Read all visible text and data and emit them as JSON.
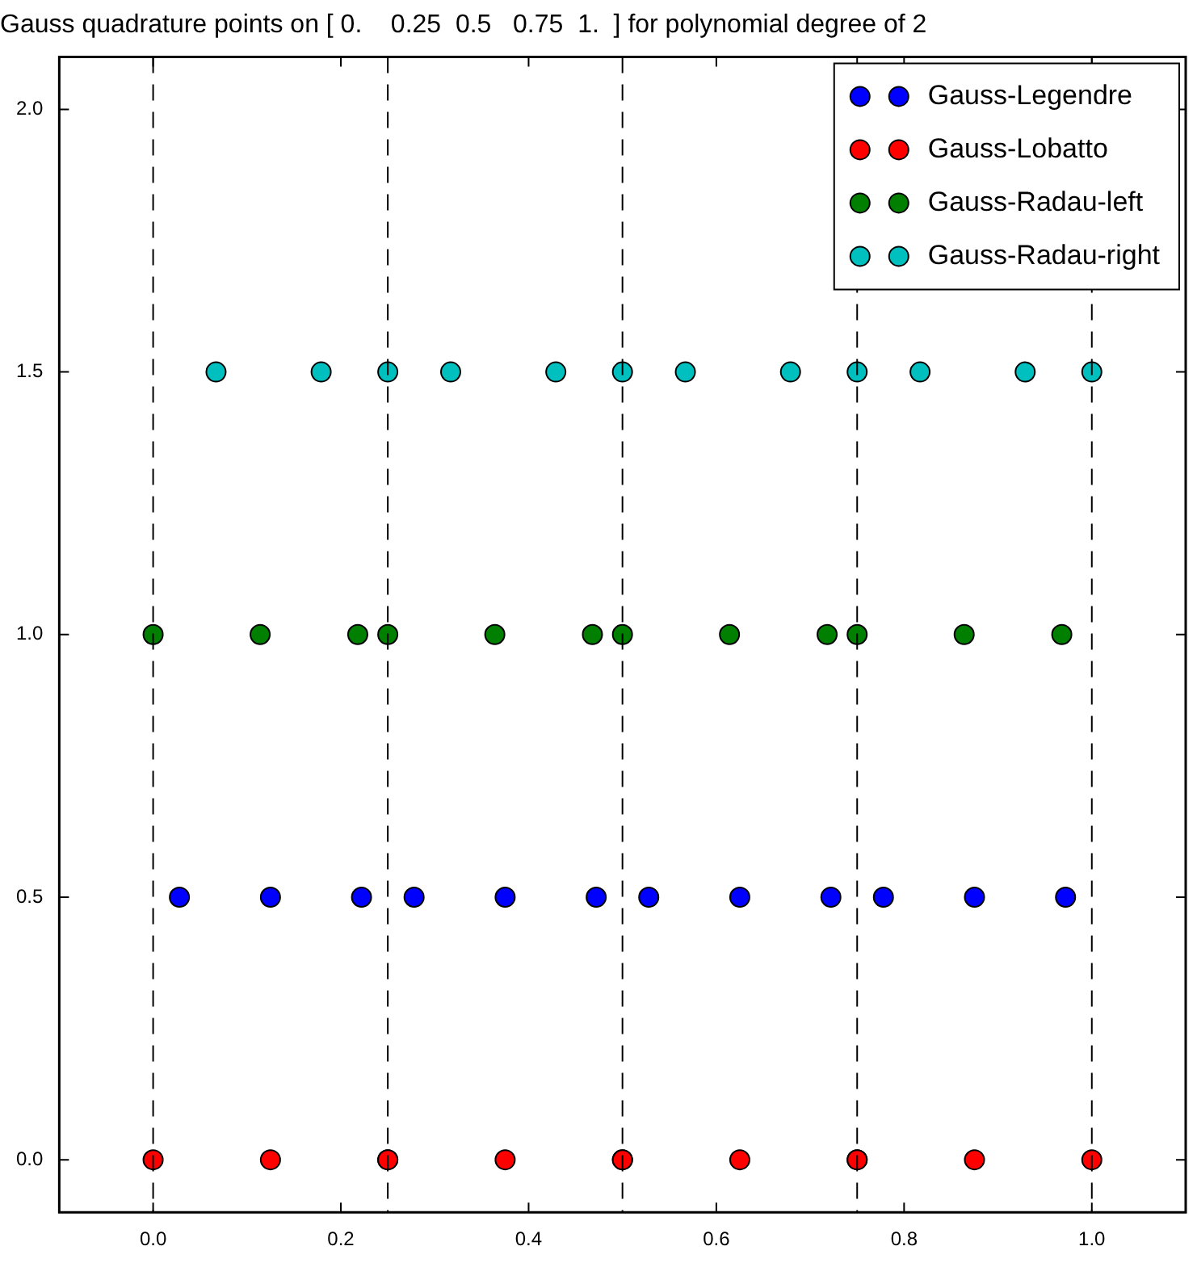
{
  "chart_data": {
    "type": "scatter",
    "title": "Gauss quadrature points on [ 0.    0.25  0.5   0.75  1.  ] for polynomial degree of 2",
    "series": [
      {
        "name": "Gauss-Legendre",
        "color": "#0000ff",
        "x": [
          0.028,
          0.125,
          0.222,
          0.278,
          0.375,
          0.472,
          0.528,
          0.625,
          0.722,
          0.778,
          0.875,
          0.972
        ],
        "values": [
          0.5,
          0.5,
          0.5,
          0.5,
          0.5,
          0.5,
          0.5,
          0.5,
          0.5,
          0.5,
          0.5,
          0.5
        ]
      },
      {
        "name": "Gauss-Lobatto",
        "color": "#ff0000",
        "x": [
          0,
          0.125,
          0.25,
          0.25,
          0.375,
          0.5,
          0.5,
          0.625,
          0.75,
          0.75,
          0.875,
          1
        ],
        "values": [
          0,
          0,
          0,
          0,
          0,
          0,
          0,
          0,
          0,
          0,
          0,
          0
        ]
      },
      {
        "name": "Gauss-Radau-left",
        "color": "#007f00",
        "x": [
          0,
          0.114,
          0.218,
          0.25,
          0.364,
          0.468,
          0.5,
          0.614,
          0.718,
          0.75,
          0.864,
          0.968
        ],
        "values": [
          1,
          1,
          1,
          1,
          1,
          1,
          1,
          1,
          1,
          1,
          1,
          1
        ]
      },
      {
        "name": "Gauss-Radau-right",
        "color": "#00bfbf",
        "x": [
          0.067,
          0.179,
          0.25,
          0.317,
          0.429,
          0.5,
          0.567,
          0.679,
          0.75,
          0.817,
          0.929,
          1
        ],
        "values": [
          1.5,
          1.5,
          1.5,
          1.5,
          1.5,
          1.5,
          1.5,
          1.5,
          1.5,
          1.5,
          1.5,
          1.5
        ]
      }
    ],
    "xlim": [
      -0.1,
      1.1
    ],
    "xticks": [
      {
        "value": 0,
        "label": "0.0"
      },
      {
        "value": 0.2,
        "label": "0.2"
      },
      {
        "value": 0.4,
        "label": "0.4"
      },
      {
        "value": 0.6,
        "label": "0.6"
      },
      {
        "value": 0.8,
        "label": "0.8"
      },
      {
        "value": 1,
        "label": "1.0"
      }
    ],
    "ylim": [
      -0.1,
      2.1
    ],
    "yticks": [
      {
        "value": 0,
        "label": "0.0"
      },
      {
        "value": 0.5,
        "label": "0.5"
      },
      {
        "value": 1,
        "label": "1.0"
      },
      {
        "value": 1.5,
        "label": "1.5"
      },
      {
        "value": 2,
        "label": "2.0"
      }
    ],
    "ref_lines": [
      {
        "axis": "x",
        "value": 0,
        "color": "#000000",
        "line_style": "dashed"
      },
      {
        "axis": "x",
        "value": 0.25,
        "color": "#000000",
        "line_style": "dashed"
      },
      {
        "axis": "x",
        "value": 0.5,
        "color": "#000000",
        "line_style": "dashed"
      },
      {
        "axis": "x",
        "value": 0.75,
        "color": "#000000",
        "line_style": "dashed"
      },
      {
        "axis": "x",
        "value": 1,
        "color": "#000000",
        "line_style": "dashed"
      }
    ],
    "grid": false,
    "legend": "top right",
    "marker": "circle"
  }
}
